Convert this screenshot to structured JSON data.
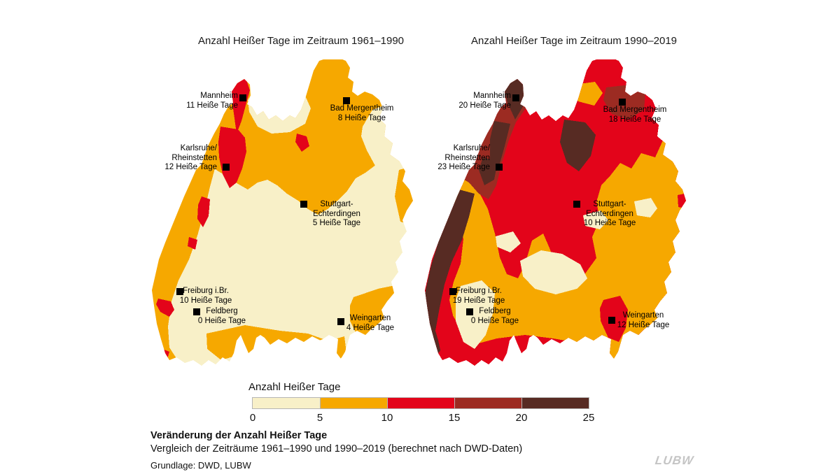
{
  "titles": {
    "left": "Anzahl Heißer Tage im Zeitraum 1961–1990",
    "right": "Anzahl Heißer Tage im Zeitraum 1990–2019"
  },
  "maps": {
    "left": {
      "stations": [
        {
          "name": "Mannheim",
          "value": "11 Heiße Tage"
        },
        {
          "name": "Bad Mergentheim",
          "value": "8 Heiße Tage"
        },
        {
          "name": "Karlsruhe/\nRheinstetten",
          "value": "12 Heiße Tage"
        },
        {
          "name": "Stuttgart-\nEchterdingen",
          "value": "5 Heiße Tage"
        },
        {
          "name": "Freiburg i.Br.",
          "value": "10 Heiße Tage"
        },
        {
          "name": "Feldberg",
          "value": "0 Heiße Tage"
        },
        {
          "name": "Weingarten",
          "value": "4 Heiße Tage"
        }
      ]
    },
    "right": {
      "stations": [
        {
          "name": "Mannheim",
          "value": "20 Heiße Tage"
        },
        {
          "name": "Bad Mergentheim",
          "value": "18 Heiße Tage"
        },
        {
          "name": "Karlsruhe/\nRheinstetten",
          "value": "23 Heiße Tage"
        },
        {
          "name": "Stuttgart-\nEchterdingen",
          "value": "10 Heiße Tage"
        },
        {
          "name": "Freiburg i.Br.",
          "value": "19 Heiße Tage"
        },
        {
          "name": "Feldberg",
          "value": "0 Heiße Tage"
        },
        {
          "name": "Weingarten",
          "value": "12 Heiße Tage"
        }
      ]
    }
  },
  "legend": {
    "title": "Anzahl Heißer Tage",
    "ticks": [
      "0",
      "5",
      "10",
      "15",
      "20",
      "25"
    ],
    "colors": [
      "#F8F0C8",
      "#F6A800",
      "#E3041A",
      "#9C2B22",
      "#572B23"
    ]
  },
  "caption": {
    "title": "Veränderung der Anzahl Heißer Tage",
    "subtitle": "Vergleich der Zeiträume 1961–1990 und 1990–2019 (berechnet nach DWD-Daten)",
    "source": "Grundlage: DWD, LUBW"
  },
  "logo": {
    "text": "LUBW"
  },
  "chart_data": {
    "type": "choropleth",
    "title": "Veränderung der Anzahl Heißer Tage",
    "region": "Baden-Württemberg",
    "variable": "Anzahl Heißer Tage (hot days per year)",
    "panels": [
      {
        "title": "Anzahl Heißer Tage im Zeitraum 1961–1990",
        "period": "1961–1990",
        "stations": [
          {
            "name": "Mannheim",
            "hot_days": 11
          },
          {
            "name": "Bad Mergentheim",
            "hot_days": 8
          },
          {
            "name": "Karlsruhe/Rheinstetten",
            "hot_days": 12
          },
          {
            "name": "Stuttgart-Echterdingen",
            "hot_days": 5
          },
          {
            "name": "Freiburg i.Br.",
            "hot_days": 10
          },
          {
            "name": "Feldberg",
            "hot_days": 0
          },
          {
            "name": "Weingarten",
            "hot_days": 4
          }
        ]
      },
      {
        "title": "Anzahl Heißer Tage im Zeitraum 1990–2019",
        "period": "1990–2019",
        "stations": [
          {
            "name": "Mannheim",
            "hot_days": 20
          },
          {
            "name": "Bad Mergentheim",
            "hot_days": 18
          },
          {
            "name": "Karlsruhe/Rheinstetten",
            "hot_days": 23
          },
          {
            "name": "Stuttgart-Echterdingen",
            "hot_days": 10
          },
          {
            "name": "Freiburg i.Br.",
            "hot_days": 19
          },
          {
            "name": "Feldberg",
            "hot_days": 0
          },
          {
            "name": "Weingarten",
            "hot_days": 12
          }
        ]
      }
    ],
    "legend": {
      "label": "Anzahl Heißer Tage",
      "breaks": [
        0,
        5,
        10,
        15,
        20,
        25
      ],
      "colors": [
        "#F8F0C8",
        "#F6A800",
        "#E3041A",
        "#9C2B22",
        "#572B23"
      ],
      "position": "bottom"
    },
    "subtitle": "Vergleich der Zeiträume 1961–1990 und 1990–2019 (berechnet nach DWD-Daten)",
    "source": "Grundlage: DWD, LUBW"
  }
}
